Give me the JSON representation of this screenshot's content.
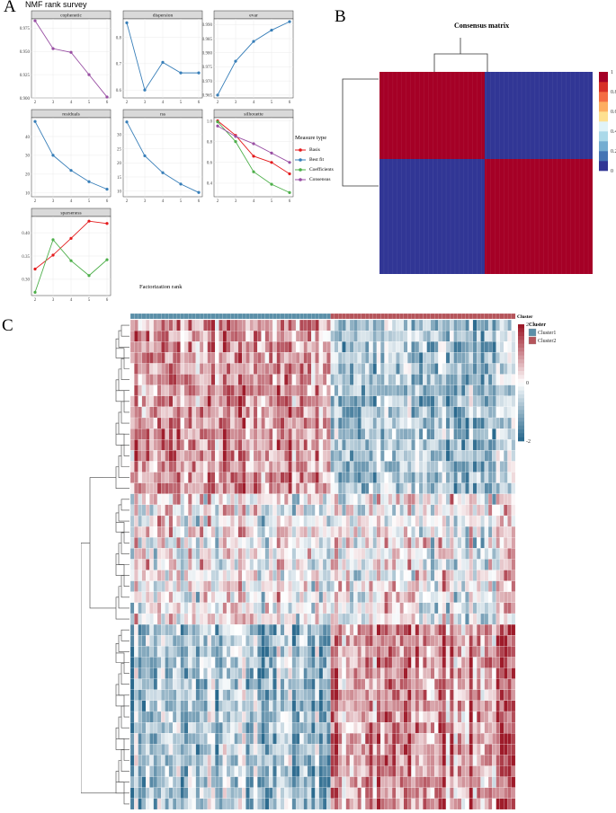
{
  "panels": {
    "a": "A",
    "b": "B",
    "c": "C"
  },
  "panel_a": {
    "title": "NMF rank survey",
    "xlabel": "Factorization rank",
    "legend_title": "Measure type",
    "legend_items": [
      {
        "name": "Basis",
        "color": "#e41a1c"
      },
      {
        "name": "Best fit",
        "color": "#377eb8"
      },
      {
        "name": "Coefficients",
        "color": "#4daf4a"
      },
      {
        "name": "Consensus",
        "color": "#984ea3"
      }
    ]
  },
  "panel_b": {
    "title": "Consensus matrix",
    "colorbar_ticks": [
      "1",
      "0.8",
      "0.6",
      "0.4",
      "0.2",
      "0"
    ],
    "colors": [
      "#313695",
      "#4575b4",
      "#74add1",
      "#abd9e9",
      "#e0f3f8",
      "#fee090",
      "#fdae61",
      "#f46d43",
      "#d73027",
      "#a50026"
    ]
  },
  "panel_c": {
    "annotation_label": "Cluster",
    "legend_title": "Cluster",
    "legend_items": [
      {
        "name": "Cluster1",
        "color": "#5b8fa8"
      },
      {
        "name": "Cluster2",
        "color": "#b5555b"
      }
    ],
    "scale_ticks": [
      "2",
      "0",
      "-2"
    ]
  },
  "chart_data": [
    {
      "type": "line",
      "facet": "cophenetic",
      "x": [
        2,
        3,
        4,
        5,
        6
      ],
      "ylim": [
        0.9,
        0.985
      ],
      "yticks": [
        "0.900",
        "0.925",
        "0.950",
        "0.975"
      ],
      "ytick_values": [
        0.9,
        0.925,
        0.95,
        0.975
      ],
      "series": [
        {
          "name": "Consensus",
          "color": "#984ea3",
          "values": [
            0.983,
            0.953,
            0.949,
            0.925,
            0.901
          ]
        }
      ]
    },
    {
      "type": "line",
      "facet": "dispersion",
      "x": [
        2,
        3,
        4,
        5,
        6
      ],
      "ylim": [
        0.57,
        0.87
      ],
      "yticks": [
        "0.6",
        "0.7",
        "0.8"
      ],
      "ytick_values": [
        0.6,
        0.7,
        0.8
      ],
      "series": [
        {
          "name": "Consensus",
          "color": "#377eb8",
          "values": [
            0.855,
            0.6,
            0.705,
            0.665,
            0.665
          ]
        }
      ]
    },
    {
      "type": "line",
      "facet": "evar",
      "x": [
        2,
        3,
        4,
        5,
        6
      ],
      "ylim": [
        0.964,
        0.992
      ],
      "yticks": [
        "0.965",
        "0.970",
        "0.975",
        "0.980",
        "0.985",
        "0.990"
      ],
      "ytick_values": [
        0.965,
        0.97,
        0.975,
        0.98,
        0.985,
        0.99
      ],
      "series": [
        {
          "name": "Best fit",
          "color": "#377eb8",
          "values": [
            0.965,
            0.977,
            0.984,
            0.988,
            0.991
          ]
        }
      ]
    },
    {
      "type": "line",
      "facet": "residuals",
      "x": [
        2,
        3,
        4,
        5,
        6
      ],
      "ylim": [
        8,
        50
      ],
      "yticks": [
        "10",
        "20",
        "30",
        "40"
      ],
      "ytick_values": [
        10,
        20,
        30,
        40
      ],
      "series": [
        {
          "name": "Best fit",
          "color": "#377eb8",
          "values": [
            48,
            30,
            22,
            16,
            12
          ]
        }
      ]
    },
    {
      "type": "line",
      "facet": "rss",
      "x": [
        2,
        3,
        4,
        5,
        6
      ],
      "ylim": [
        8,
        36
      ],
      "yticks": [
        "10",
        "15",
        "20",
        "25",
        "30"
      ],
      "ytick_values": [
        10,
        15,
        20,
        25,
        30
      ],
      "series": [
        {
          "name": "Best fit",
          "color": "#377eb8",
          "values": [
            34.5,
            22.5,
            16.5,
            12.5,
            9.5
          ]
        }
      ]
    },
    {
      "type": "line",
      "facet": "silhouette",
      "x": [
        2,
        3,
        4,
        5,
        6
      ],
      "ylim": [
        0.27,
        1.03
      ],
      "yticks": [
        "0.4",
        "0.6",
        "0.8",
        "1.0"
      ],
      "ytick_values": [
        0.4,
        0.6,
        0.8,
        1.0
      ],
      "series": [
        {
          "name": "Basis",
          "color": "#e41a1c",
          "values": [
            1.0,
            0.86,
            0.66,
            0.6,
            0.49
          ]
        },
        {
          "name": "Coefficients",
          "color": "#4daf4a",
          "values": [
            0.99,
            0.8,
            0.51,
            0.39,
            0.31
          ]
        },
        {
          "name": "Consensus",
          "color": "#984ea3",
          "values": [
            0.95,
            0.85,
            0.78,
            0.69,
            0.6
          ]
        }
      ]
    },
    {
      "type": "line",
      "facet": "sparseness",
      "x": [
        2,
        3,
        4,
        5,
        6
      ],
      "ylim": [
        0.265,
        0.435
      ],
      "yticks": [
        "0.30",
        "0.35",
        "0.40"
      ],
      "ytick_values": [
        0.3,
        0.35,
        0.4
      ],
      "series": [
        {
          "name": "Basis",
          "color": "#e41a1c",
          "values": [
            0.322,
            0.352,
            0.388,
            0.425,
            0.42
          ]
        },
        {
          "name": "Coefficients",
          "color": "#4daf4a",
          "values": [
            0.272,
            0.385,
            0.34,
            0.308,
            0.342
          ]
        }
      ]
    },
    {
      "type": "heatmap",
      "title": "Consensus matrix",
      "clusters": 2,
      "matrix": [
        [
          1,
          0
        ],
        [
          0,
          1
        ]
      ],
      "range": [
        0,
        1
      ]
    },
    {
      "type": "heatmap",
      "title": "",
      "rows": 45,
      "columns": 100,
      "column_groups": [
        {
          "name": "Cluster1",
          "count": 52
        },
        {
          "name": "Cluster2",
          "count": 48
        }
      ],
      "range": [
        -2,
        2
      ]
    }
  ]
}
